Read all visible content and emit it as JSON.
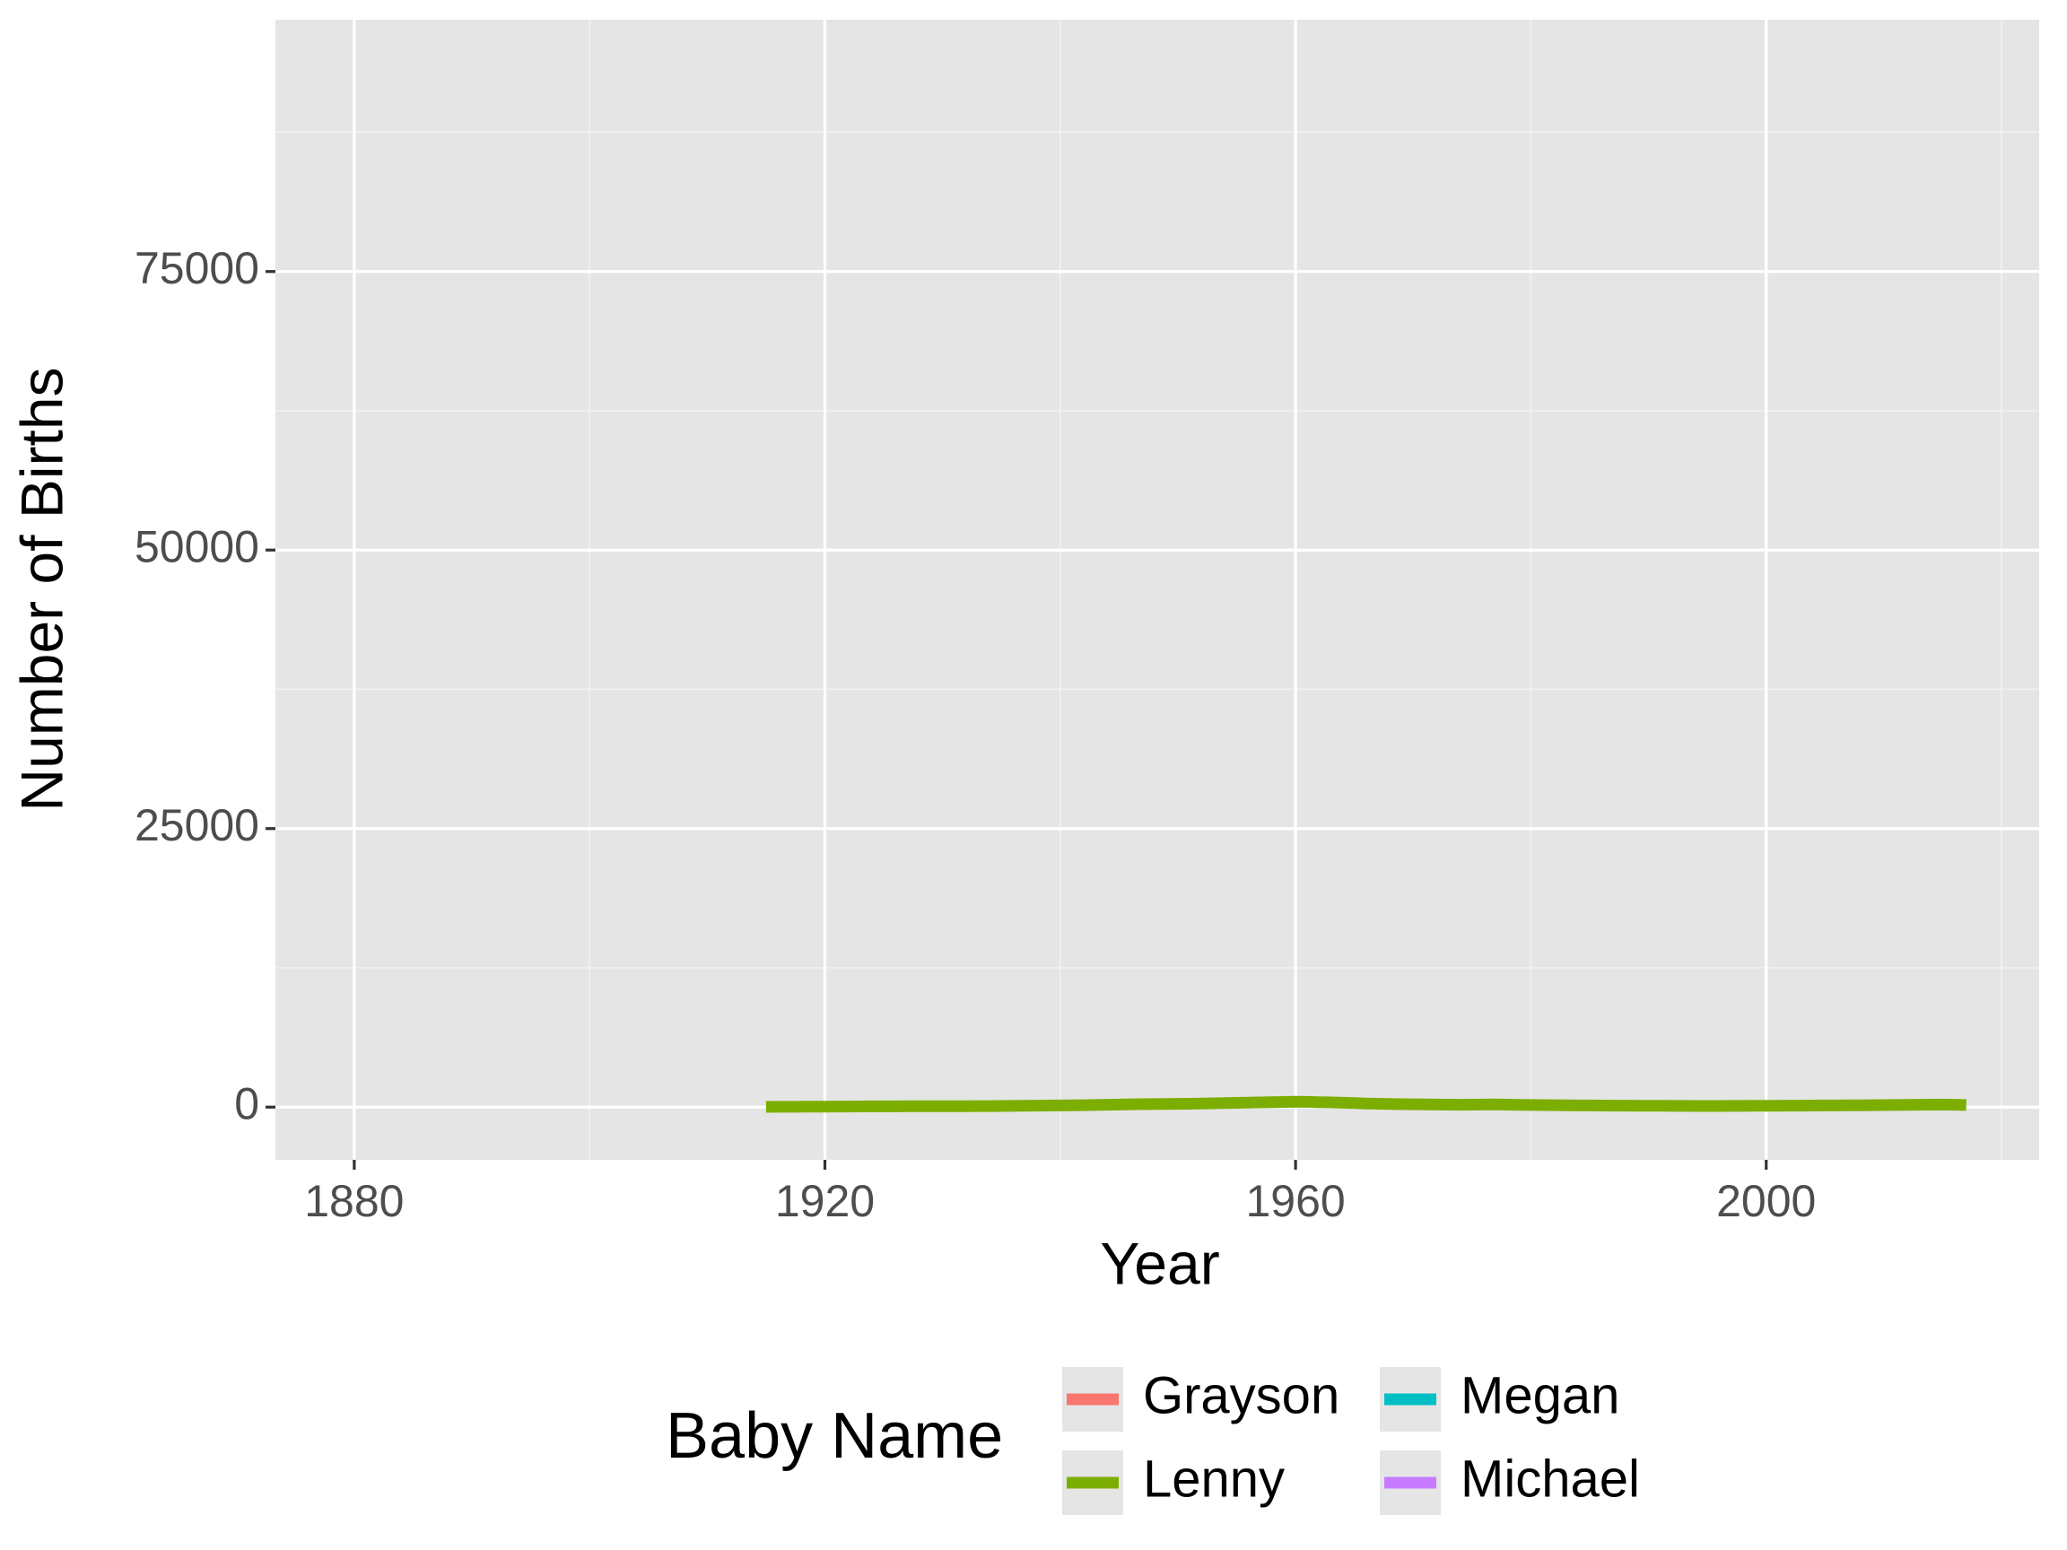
{
  "chart_data": {
    "type": "line",
    "xlabel": "Year",
    "ylabel": "Number of Births",
    "legend_title": "Baby Name",
    "legend_position": "bottom",
    "xlim": [
      1873.3,
      2023.2
    ],
    "xticks": [
      1880,
      1920,
      1960,
      2000
    ],
    "ylim": [
      -4730,
      97600
    ],
    "yticks": [
      0,
      25000,
      50000,
      75000
    ],
    "grid": true,
    "series": [
      {
        "name": "Grayson",
        "color": "#F8766D",
        "x": [],
        "values": []
      },
      {
        "name": "Lenny",
        "color": "#7CAE00",
        "x": [
          1915,
          1916,
          1917,
          1918,
          1919,
          1920,
          1921,
          1922,
          1923,
          1924,
          1925,
          1926,
          1927,
          1928,
          1929,
          1930,
          1931,
          1932,
          1933,
          1934,
          1935,
          1936,
          1937,
          1938,
          1939,
          1940,
          1941,
          1942,
          1943,
          1944,
          1945,
          1946,
          1947,
          1948,
          1949,
          1950,
          1951,
          1952,
          1953,
          1954,
          1955,
          1956,
          1957,
          1958,
          1959,
          1960,
          1961,
          1962,
          1963,
          1964,
          1965,
          1966,
          1967,
          1968,
          1969,
          1970,
          1971,
          1972,
          1973,
          1974,
          1975,
          1976,
          1977,
          1978,
          1979,
          1980,
          1981,
          1982,
          1983,
          1984,
          1985,
          1986,
          1987,
          1988,
          1989,
          1990,
          1991,
          1992,
          1993,
          1994,
          1995,
          1996,
          1997,
          1998,
          1999,
          2000,
          2001,
          2002,
          2003,
          2004,
          2005,
          2006,
          2007,
          2008,
          2009,
          2010,
          2011,
          2012,
          2013,
          2014,
          2015,
          2016,
          2017
        ],
        "values": [
          20,
          25,
          30,
          35,
          40,
          45,
          50,
          55,
          60,
          65,
          70,
          72,
          75,
          78,
          80,
          82,
          85,
          88,
          90,
          95,
          100,
          110,
          120,
          130,
          140,
          150,
          160,
          175,
          190,
          210,
          230,
          250,
          260,
          270,
          280,
          290,
          300,
          320,
          340,
          360,
          380,
          400,
          420,
          440,
          460,
          480,
          470,
          450,
          420,
          390,
          360,
          330,
          300,
          280,
          260,
          250,
          240,
          230,
          220,
          210,
          220,
          230,
          240,
          220,
          200,
          190,
          180,
          170,
          160,
          150,
          145,
          140,
          135,
          130,
          125,
          120,
          115,
          110,
          105,
          100,
          100,
          100,
          105,
          110,
          115,
          120,
          125,
          130,
          135,
          140,
          145,
          150,
          155,
          160,
          170,
          180,
          190,
          200,
          210,
          220,
          230,
          210,
          190
        ]
      },
      {
        "name": "Megan",
        "color": "#00BFC4",
        "x": [],
        "values": []
      },
      {
        "name": "Michael",
        "color": "#C77CFF",
        "x": [],
        "values": []
      }
    ]
  }
}
